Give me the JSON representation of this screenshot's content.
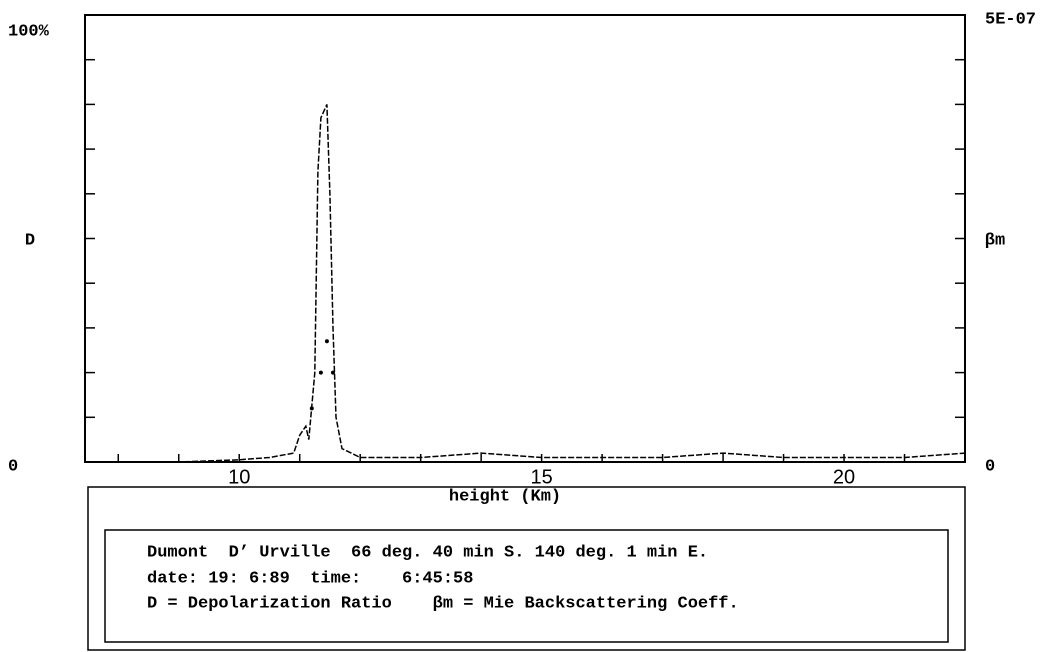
{
  "chart_data": {
    "type": "line",
    "x_label": "height (Km)",
    "y_label": "D",
    "y2_label": "βm",
    "xlim": [
      7.45,
      22.0
    ],
    "xticks": [
      10,
      15,
      20
    ],
    "xminor_ticks": [
      8,
      9,
      11,
      12,
      13,
      14,
      16,
      17,
      18,
      19,
      21
    ],
    "ylim": [
      0,
      100
    ],
    "yticks": [
      0,
      {
        "value": 100,
        "label": "100%"
      }
    ],
    "yminor_ticks": [
      10,
      20,
      30,
      40,
      50,
      60,
      70,
      80,
      90
    ],
    "y2lim": [
      0,
      5e-07
    ],
    "y2ticks": [
      0,
      {
        "value": 5e-07,
        "label": "5E-07"
      }
    ],
    "y2minor_ticks": [
      5e-08,
      1e-07,
      1.5e-07,
      2e-07,
      2.5e-07,
      3e-07,
      3.5e-07,
      4e-07,
      4.5e-07
    ],
    "series": [
      {
        "name": "D",
        "color": "#000000",
        "x": [
          7.5,
          9,
          10,
          10.5,
          10.9,
          11.0,
          11.1,
          11.15,
          11.25,
          11.3,
          11.35,
          11.45,
          11.5,
          11.55,
          11.6,
          11.7,
          12.0,
          13,
          14,
          15,
          16,
          17,
          18,
          19,
          20,
          21,
          22
        ],
        "values": [
          0,
          0,
          0.5,
          1,
          2,
          6,
          8,
          5,
          20,
          65,
          77,
          80,
          60,
          30,
          10,
          3,
          1,
          1,
          2,
          1,
          1,
          1,
          2,
          1,
          1,
          1,
          2
        ]
      },
      {
        "name": "βm",
        "color": "#000000",
        "axis": "y2",
        "x": [
          11.2,
          11.35,
          11.45,
          11.55
        ],
        "values": [
          6e-08,
          1e-07,
          1.35e-07,
          1e-07
        ]
      }
    ],
    "annotations": [
      "Dumont  D’ Urville  66 deg. 40 min S. 140 deg. 1 min E.",
      "date: 19: 6:89  time:    6:45:58",
      "D = Depolarization Ratio    βm = Mie Backscattering Coeff."
    ]
  }
}
